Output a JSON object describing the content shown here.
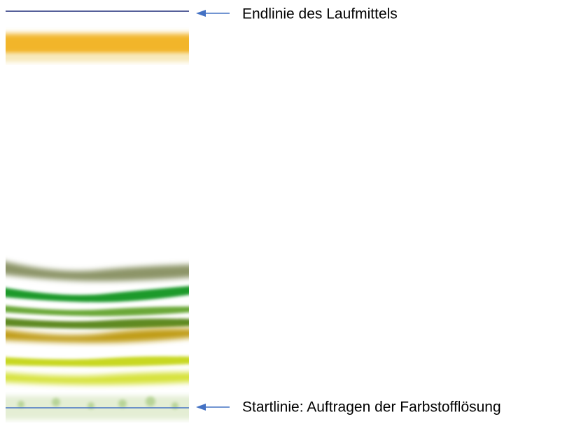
{
  "labels": {
    "end_line": "Endlinie des Laufmittels",
    "start_line": "Startlinie: Auftragen der Farbstofflösung"
  }
}
